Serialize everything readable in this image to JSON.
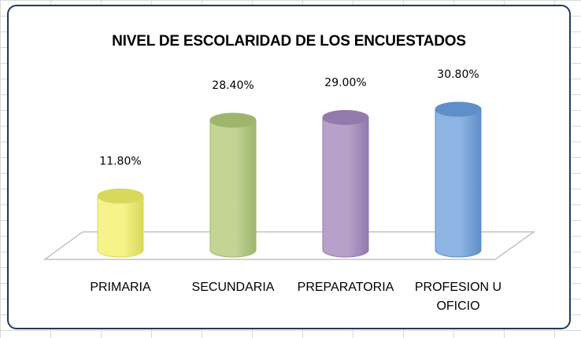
{
  "chart_data": {
    "type": "bar",
    "title": "NIVEL DE ESCOLARIDAD DE LOS ENCUESTADOS",
    "categories": [
      [
        "PRIMARIA"
      ],
      [
        "SECUNDARIA"
      ],
      [
        "PREPARATORIA"
      ],
      [
        "PROFESION U",
        "OFICIO"
      ]
    ],
    "values": [
      11.8,
      28.4,
      29.0,
      30.8
    ],
    "value_labels": [
      "11.80%",
      "28.40%",
      "29.00%",
      "30.80%"
    ],
    "unit": "%",
    "ylim": [
      0,
      35
    ],
    "grid": false,
    "legend": "none",
    "shape": "3d-cylinder",
    "colors": [
      "#f4f48a",
      "#c3d595",
      "#b7a1ca",
      "#8db4e2"
    ],
    "color_shades": [
      "#d8d85a",
      "#9fb56e",
      "#9479ad",
      "#5f8fc9"
    ]
  }
}
